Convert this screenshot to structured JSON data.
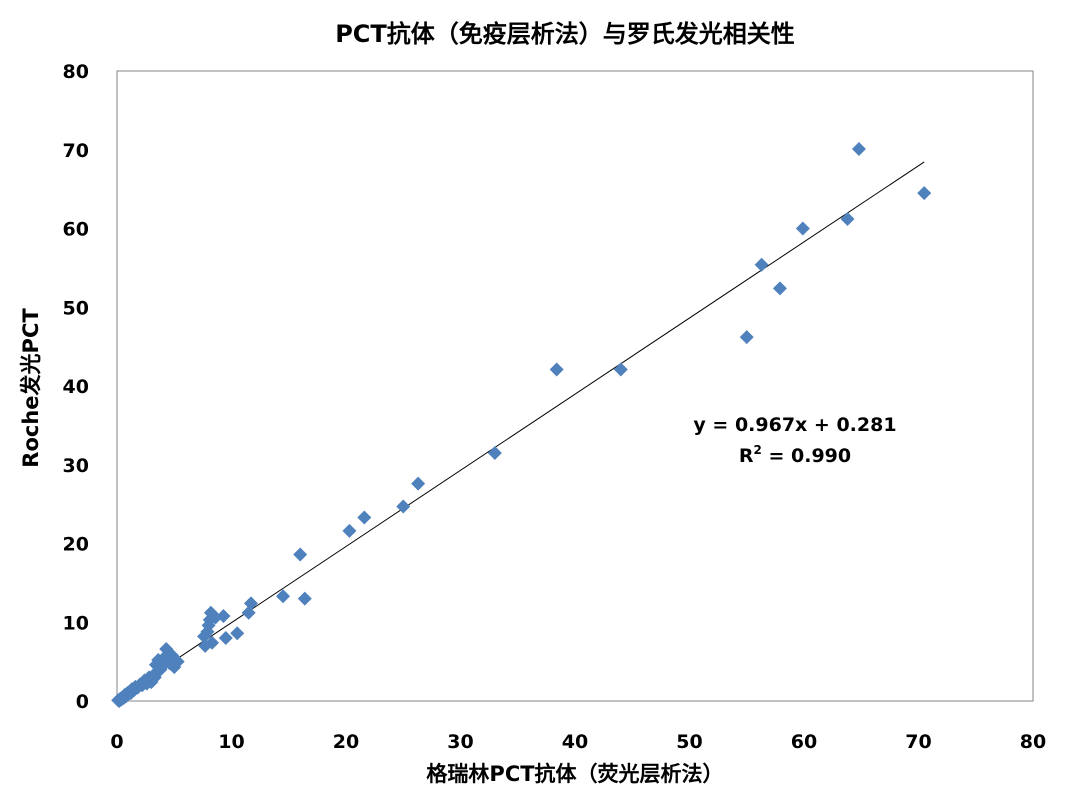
{
  "chart_data": {
    "type": "scatter",
    "title": "PCT抗体（免疫层析法）与罗氏发光相关性",
    "xlabel": "格瑞林PCT抗体（荧光层析法）",
    "ylabel": "Roche发光PCT",
    "xlim": [
      0,
      80
    ],
    "ylim": [
      0,
      80
    ],
    "xticks": [
      0,
      10,
      20,
      30,
      40,
      50,
      60,
      70,
      80
    ],
    "yticks": [
      0,
      10,
      20,
      30,
      40,
      50,
      60,
      70,
      80
    ],
    "xtick_labels": [
      "0",
      "10",
      "20",
      "30",
      "40",
      "50",
      "60",
      "70",
      "80"
    ],
    "ytick_labels": [
      "0",
      "10",
      "20",
      "30",
      "40",
      "50",
      "60",
      "70",
      "80"
    ],
    "grid": false,
    "legend": "none",
    "marker_color": "#4F81BD",
    "trendline": {
      "slope": 0.967,
      "intercept": 0.281,
      "x_range": [
        0.3,
        70.5
      ],
      "color": "#000000"
    },
    "equation_text": "y = 0.967x + 0.281",
    "r2_prefix": "R",
    "r2_sup": "2",
    "r2_suffix": " = 0.990",
    "points": [
      [
        0.1,
        0.1
      ],
      [
        0.2,
        0.0
      ],
      [
        0.3,
        0.3
      ],
      [
        0.4,
        0.2
      ],
      [
        0.5,
        0.5
      ],
      [
        0.6,
        0.4
      ],
      [
        0.7,
        0.8
      ],
      [
        0.8,
        0.6
      ],
      [
        0.9,
        1.0
      ],
      [
        1.0,
        0.9
      ],
      [
        1.1,
        1.2
      ],
      [
        1.2,
        1.0
      ],
      [
        1.3,
        1.5
      ],
      [
        1.5,
        1.4
      ],
      [
        1.6,
        1.8
      ],
      [
        1.8,
        1.7
      ],
      [
        2.0,
        2.1
      ],
      [
        2.2,
        2.0
      ],
      [
        2.4,
        2.6
      ],
      [
        2.6,
        2.2
      ],
      [
        2.8,
        3.0
      ],
      [
        3.0,
        2.4
      ],
      [
        3.2,
        3.3
      ],
      [
        3.3,
        3.0
      ],
      [
        3.4,
        4.6
      ],
      [
        3.5,
        3.6
      ],
      [
        3.6,
        5.2
      ],
      [
        3.8,
        4.0
      ],
      [
        4.0,
        4.5
      ],
      [
        4.2,
        5.6
      ],
      [
        4.3,
        6.6
      ],
      [
        4.6,
        4.8
      ],
      [
        4.8,
        5.8
      ],
      [
        5.0,
        4.3
      ],
      [
        5.3,
        5.0
      ],
      [
        7.6,
        8.2
      ],
      [
        7.7,
        7.0
      ],
      [
        7.9,
        8.8
      ],
      [
        8.0,
        9.6
      ],
      [
        8.1,
        10.3
      ],
      [
        8.2,
        11.2
      ],
      [
        8.3,
        7.4
      ],
      [
        8.6,
        10.6
      ],
      [
        9.3,
        10.8
      ],
      [
        9.5,
        8.0
      ],
      [
        10.5,
        8.6
      ],
      [
        11.5,
        11.2
      ],
      [
        11.7,
        12.4
      ],
      [
        14.5,
        13.3
      ],
      [
        16.0,
        18.6
      ],
      [
        16.4,
        13.0
      ],
      [
        20.3,
        21.6
      ],
      [
        21.6,
        23.3
      ],
      [
        25.0,
        24.7
      ],
      [
        26.3,
        27.6
      ],
      [
        33.0,
        31.5
      ],
      [
        38.4,
        42.1
      ],
      [
        44.0,
        42.1
      ],
      [
        55.0,
        46.2
      ],
      [
        56.3,
        55.4
      ],
      [
        57.9,
        52.4
      ],
      [
        59.9,
        60.0
      ],
      [
        63.8,
        61.2
      ],
      [
        64.8,
        70.1
      ],
      [
        70.5,
        64.5
      ]
    ]
  }
}
